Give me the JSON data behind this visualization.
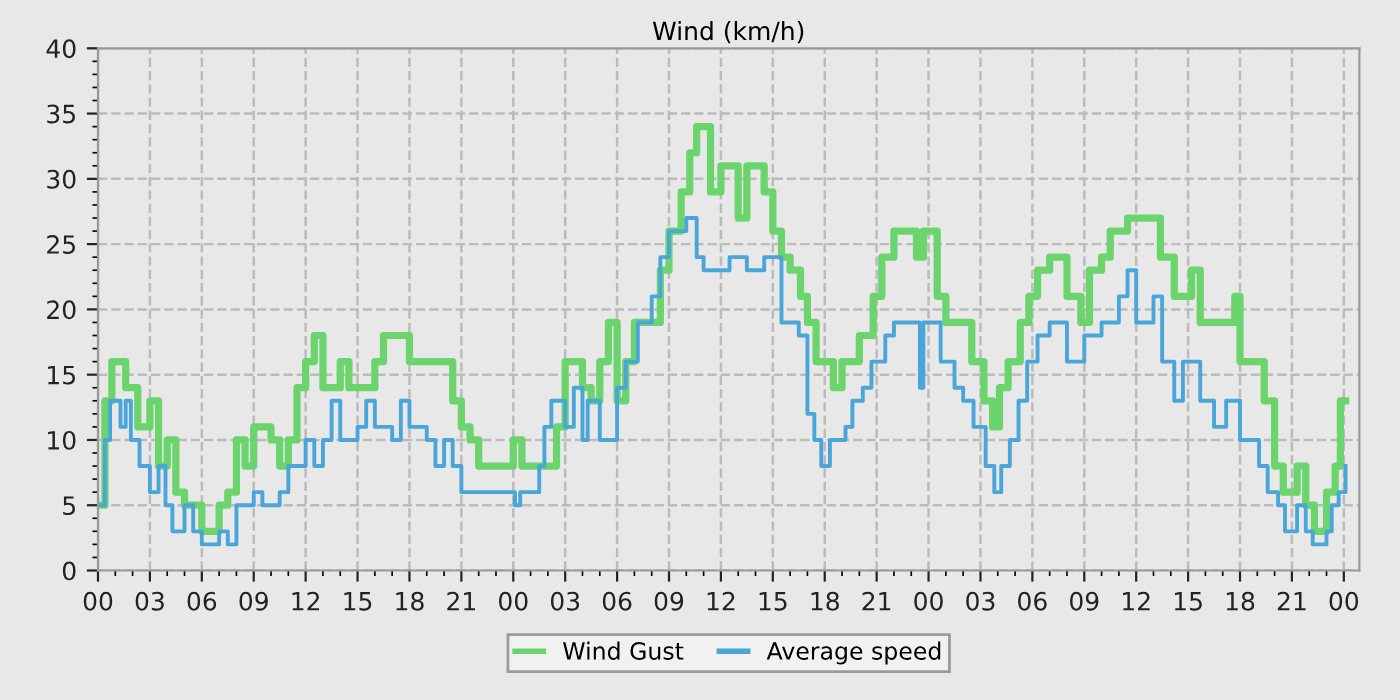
{
  "chart_data": {
    "type": "step",
    "title": "Wind (km/h)",
    "xlim": [
      0,
      72.9
    ],
    "ylim": [
      0,
      40
    ],
    "xticks": [
      {
        "value": 0,
        "label": "00"
      },
      {
        "value": 3,
        "label": "03"
      },
      {
        "value": 6,
        "label": "06"
      },
      {
        "value": 9,
        "label": "09"
      },
      {
        "value": 12,
        "label": "12"
      },
      {
        "value": 15,
        "label": "15"
      },
      {
        "value": 18,
        "label": "18"
      },
      {
        "value": 21,
        "label": "21"
      },
      {
        "value": 24,
        "label": "00"
      },
      {
        "value": 27,
        "label": "03"
      },
      {
        "value": 30,
        "label": "06"
      },
      {
        "value": 33,
        "label": "09"
      },
      {
        "value": 36,
        "label": "12"
      },
      {
        "value": 39,
        "label": "15"
      },
      {
        "value": 42,
        "label": "18"
      },
      {
        "value": 45,
        "label": "21"
      },
      {
        "value": 48,
        "label": "00"
      },
      {
        "value": 51,
        "label": "03"
      },
      {
        "value": 54,
        "label": "06"
      },
      {
        "value": 57,
        "label": "09"
      },
      {
        "value": 60,
        "label": "12"
      },
      {
        "value": 63,
        "label": "15"
      },
      {
        "value": 66,
        "label": "18"
      },
      {
        "value": 69,
        "label": "21"
      },
      {
        "value": 72,
        "label": "00"
      }
    ],
    "yticks": [
      0,
      5,
      10,
      15,
      20,
      25,
      30,
      35,
      40
    ],
    "grid": true,
    "legend": "bottom",
    "marker": "none",
    "line_style": "solid",
    "series": [
      {
        "name": "Wind Gust",
        "color": "#6cd46c",
        "x": [
          0,
          0.4,
          0.8,
          1.6,
          2.3,
          3,
          3.5,
          4,
          4.5,
          5,
          6,
          7,
          7.5,
          8,
          8.5,
          9,
          10,
          10.5,
          11,
          11.5,
          12,
          12.5,
          13,
          14,
          14.5,
          16,
          16.5,
          18,
          20,
          20.5,
          21,
          21.5,
          22,
          23,
          24,
          24.5,
          26,
          26.5,
          27,
          28,
          28.5,
          29,
          29.5,
          30,
          30.5,
          31,
          32.5,
          33,
          33.7,
          34.2,
          34.6,
          35.4,
          36,
          37,
          37.5,
          38.5,
          39,
          39.5,
          40,
          40.6,
          41,
          41.5,
          42.5,
          43,
          44,
          44.8,
          45.3,
          46,
          47.3,
          47.7,
          48.5,
          49,
          50.5,
          51.2,
          51.7,
          52.1,
          52.6,
          53.3,
          53.8,
          54.3,
          55,
          56,
          56.8,
          57.3,
          58,
          58.5,
          59.5,
          61.4,
          62.2,
          63.2,
          63.7,
          65.7,
          66,
          67.4,
          68,
          68.5,
          69.3,
          69.8,
          70.3,
          71,
          71.5,
          71.8,
          72.1
        ],
        "values": [
          5,
          13,
          16,
          14,
          11,
          13,
          8,
          10,
          6,
          5,
          3,
          5,
          6,
          10,
          8,
          11,
          10,
          8,
          10,
          14,
          16,
          18,
          14,
          16,
          14,
          16,
          18,
          16,
          16,
          13,
          11,
          10,
          8,
          8,
          10,
          8,
          8,
          11,
          16,
          14,
          13,
          16,
          19,
          13,
          16,
          19,
          23,
          26,
          29,
          32,
          34,
          29,
          31,
          27,
          31,
          29,
          26,
          24,
          23,
          21,
          19,
          16,
          14,
          16,
          18,
          21,
          24,
          26,
          24,
          26,
          21,
          19,
          16,
          13,
          11,
          14,
          16,
          19,
          21,
          23,
          24,
          21,
          19,
          23,
          24,
          26,
          27,
          24,
          21,
          23,
          19,
          21,
          16,
          13,
          8,
          6,
          8,
          5,
          3,
          6,
          8,
          13,
          13
        ]
      },
      {
        "name": "Average speed",
        "color": "#4aa6d8",
        "x": [
          0,
          0.4,
          0.7,
          1.3,
          1.6,
          1.9,
          2.4,
          3,
          3.5,
          3.9,
          4.3,
          5,
          5.5,
          6,
          7,
          7.5,
          8,
          9,
          9.5,
          10.5,
          11,
          12,
          12.5,
          13,
          13.5,
          14,
          15,
          15.5,
          16,
          17,
          17.5,
          18,
          19,
          19.5,
          20,
          20.5,
          21,
          23.5,
          24.1,
          24.4,
          25.5,
          25.8,
          26.2,
          27,
          27.5,
          28,
          28.3,
          29,
          30,
          30.5,
          31.2,
          32,
          32.5,
          33,
          34,
          34.6,
          35,
          36.5,
          37.5,
          38.5,
          39.5,
          40.5,
          41,
          41.4,
          41.8,
          42.3,
          43.2,
          43.6,
          44.2,
          44.7,
          45.5,
          46,
          47.5,
          47.7,
          48.7,
          49.5,
          50,
          50.6,
          51.3,
          51.8,
          52.2,
          52.7,
          53.2,
          53.7,
          54.3,
          55,
          56,
          57,
          58,
          59,
          59.5,
          60,
          61,
          61.5,
          62.2,
          62.7,
          63.7,
          64.5,
          65.2,
          66,
          67.1,
          67.6,
          68.2,
          68.6,
          69.3,
          69.8,
          70.2,
          71,
          71.3,
          71.7,
          72.1
        ],
        "values": [
          5,
          10,
          13,
          11,
          13,
          10,
          8,
          6,
          8,
          5,
          3,
          5,
          3,
          2,
          3,
          2,
          5,
          6,
          5,
          6,
          8,
          10,
          8,
          10,
          13,
          10,
          11,
          13,
          11,
          10,
          13,
          11,
          10,
          8,
          10,
          8,
          6,
          6,
          5,
          6,
          8,
          11,
          13,
          11,
          14,
          10,
          13,
          10,
          14,
          16,
          19,
          21,
          24,
          26,
          27,
          24,
          23,
          24,
          23,
          24,
          19,
          18,
          12,
          10,
          8,
          10,
          11,
          13,
          14,
          16,
          18,
          19,
          14,
          19,
          16,
          14,
          13,
          11,
          8,
          6,
          8,
          10,
          13,
          16,
          18,
          19,
          16,
          18,
          19,
          21,
          23,
          19,
          21,
          16,
          13,
          16,
          13,
          11,
          13,
          10,
          8,
          6,
          5,
          3,
          5,
          3,
          2,
          3,
          5,
          6,
          8
        ]
      }
    ]
  }
}
